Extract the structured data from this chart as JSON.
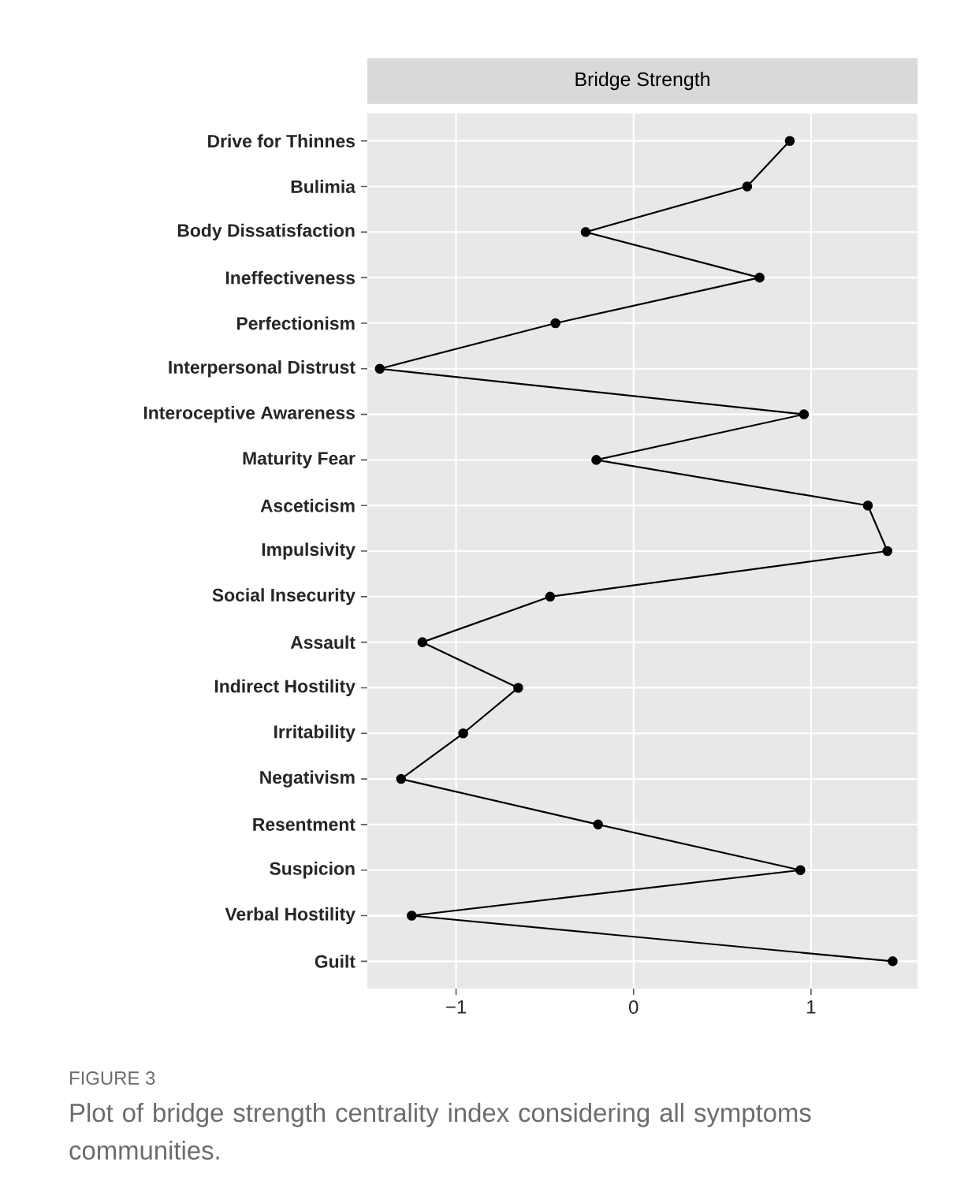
{
  "chart_data": {
    "type": "line",
    "orientation": "horizontal",
    "title": "Bridge Strength",
    "categories": [
      "Drive for Thinnes",
      "Bulimia",
      "Body Dissatisfaction",
      "Ineffectiveness",
      "Perfectionism",
      "Interpersonal Distrust",
      "Interoceptive Awareness",
      "Maturity Fear",
      "Asceticism",
      "Impulsivity",
      "Social Insecurity",
      "Assault",
      "Indirect Hostility",
      "Irritability",
      "Negativism",
      "Resentment",
      "Suspicion",
      "Verbal Hostility",
      "Guilt"
    ],
    "series": [
      {
        "color": "#000000",
        "values": [
          0.88,
          0.64,
          -0.27,
          0.71,
          -0.44,
          -1.43,
          0.96,
          -0.21,
          1.32,
          1.43,
          -0.47,
          -1.19,
          -0.65,
          -0.96,
          -1.31,
          -0.2,
          0.94,
          -1.25,
          1.46
        ]
      }
    ],
    "xlim": [
      -1.5,
      1.6
    ],
    "xticks": [
      {
        "value": -1,
        "label": "−1"
      },
      0,
      1
    ],
    "grid": true,
    "marker": "circle",
    "line_style": "solid",
    "annotations": [
      "FIGURE 3",
      "Plot of bridge strength centrality index considering all symptoms communities."
    ]
  }
}
